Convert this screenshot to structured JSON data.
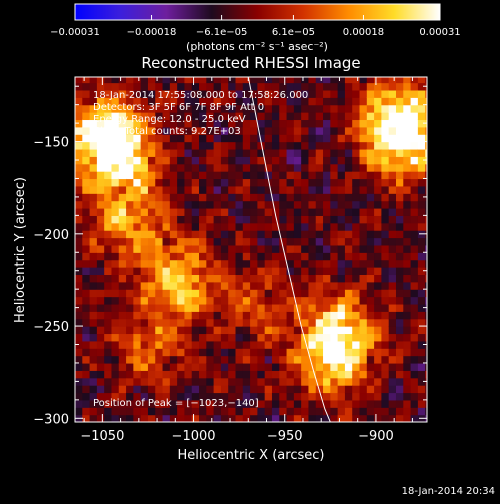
{
  "chart_data": {
    "type": "heatmap",
    "title": "Reconstructed RHESSI Image",
    "xlabel": "Heliocentric X (arcsec)",
    "ylabel": "Heliocentric Y (arcsec)",
    "xlim": [
      -1065,
      -872
    ],
    "ylim": [
      -302,
      -115
    ],
    "x_ticks": [
      {
        "value": -1050,
        "label": "−1050"
      },
      {
        "value": -1000,
        "label": "−1000"
      },
      {
        "value": -950,
        "label": "−950"
      },
      {
        "value": -900,
        "label": "−900"
      }
    ],
    "y_ticks": [
      {
        "value": -150,
        "label": "−150"
      },
      {
        "value": -200,
        "label": "−200"
      },
      {
        "value": -250,
        "label": "−250"
      },
      {
        "value": -300,
        "label": "−300"
      }
    ],
    "colorbar": {
      "range": [
        -0.00031,
        0.00031
      ],
      "unit_label": "(photons cm⁻² s⁻¹ asec⁻²)",
      "ticks": [
        {
          "value": -0.00031,
          "label": "−0.00031"
        },
        {
          "value": -0.00018,
          "label": "−0.00018"
        },
        {
          "value": -6.1e-05,
          "label": "−6.1e−05"
        },
        {
          "value": 6.1e-05,
          "label": "6.1e−05"
        },
        {
          "value": 0.00018,
          "label": "0.00018"
        },
        {
          "value": 0.00031,
          "label": "0.00031"
        }
      ],
      "colors": [
        "#0000ff",
        "#3c1edc",
        "#6e1e9e",
        "#1e0a1e",
        "#8a0000",
        "#d23200",
        "#ff8c00",
        "#ffdc28",
        "#ffffff"
      ]
    },
    "annotations": [
      "18-Jan-2014 17:55:08.000 to 17:58:26.000",
      "Detectors: 3F 5F 6F 7F 8F 9F Att 0",
      "Energy Range: 12.0 - 25.0 keV",
      "Clean     Total counts: 9.27E+03"
    ],
    "peak_label": "Position of Peak = [−1023,−140]",
    "peak": {
      "x": -1023,
      "y": -140
    },
    "limb_curve": {
      "x": [
        -970,
        -963,
        -955,
        -948,
        -941,
        -934,
        -928,
        -925
      ],
      "y": [
        -115,
        -150,
        -190,
        -220,
        -250,
        -275,
        -295,
        -302
      ]
    },
    "sources": [
      {
        "x": -1040,
        "y": -160,
        "intensity": 0.00028
      },
      {
        "x": -1050,
        "y": -145,
        "intensity": 0.00031
      },
      {
        "x": -1035,
        "y": -195,
        "intensity": 0.00022
      },
      {
        "x": -1008,
        "y": -225,
        "intensity": 0.00026
      },
      {
        "x": -1025,
        "y": -260,
        "intensity": 0.00015
      },
      {
        "x": -920,
        "y": -252,
        "intensity": 0.00029
      },
      {
        "x": -925,
        "y": -270,
        "intensity": 0.0002
      },
      {
        "x": -885,
        "y": -150,
        "intensity": 0.0003
      },
      {
        "x": -888,
        "y": -135,
        "intensity": 0.00024
      },
      {
        "x": -965,
        "y": -240,
        "intensity": 0.00012
      }
    ]
  },
  "footer": {
    "timestamp": "18-Jan-2014 20:34"
  }
}
